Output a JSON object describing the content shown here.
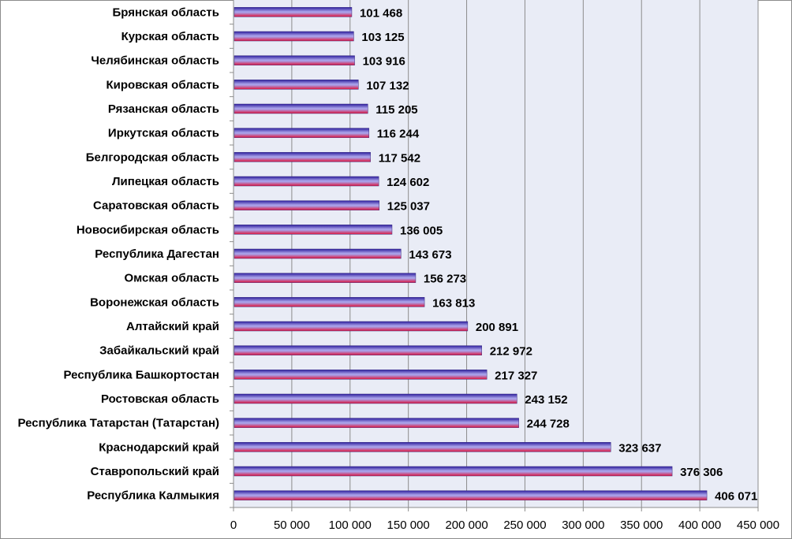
{
  "chart_data": {
    "type": "bar",
    "orientation": "horizontal",
    "categories": [
      "Брянская область",
      "Курская область",
      "Челябинская область",
      "Кировская область",
      "Рязанская  область",
      "Иркутская  область",
      "Белгородская область",
      "Липецкая область",
      "Саратовская  область",
      "Новосибирская область",
      "Республика Дагестан",
      "Омская область",
      "Воронежская область",
      "Алтайский край",
      "Забайкальский край",
      "Республика Башкортостан",
      "Ростовская  область",
      "Республика Татарстан  (Татарстан)",
      "Краснодарский край",
      "Ставропольский край",
      "Республика Калмыкия"
    ],
    "values": [
      101468,
      103125,
      103916,
      107132,
      115205,
      116244,
      117542,
      124602,
      125037,
      136005,
      143673,
      156273,
      163813,
      200891,
      212972,
      217327,
      243152,
      244728,
      323637,
      376306,
      406071
    ],
    "value_labels": [
      "101 468",
      "103 125",
      "103 916",
      "107 132",
      "115 205",
      "116 244",
      "117 542",
      "124 602",
      "125 037",
      "136 005",
      "143 673",
      "156 273",
      "163 813",
      "200 891",
      "212 972",
      "217 327",
      "243 152",
      "244 728",
      "323 637",
      "376 306",
      "406 071"
    ],
    "x_ticks": [
      "0",
      "50 000",
      "100 000",
      "150 000",
      "200 000",
      "250 000",
      "300 000",
      "350 000",
      "400 000",
      "450 000"
    ],
    "xlim": [
      0,
      450000
    ],
    "grid": "vertical",
    "legend": "none",
    "colors": {
      "bar_top": "#2e1f9e",
      "bar_mid": "#a8a0e8",
      "bar_bottom": "#e0143c",
      "plot_background": "#e9ecf6",
      "grid": "#8c8c8c"
    }
  }
}
